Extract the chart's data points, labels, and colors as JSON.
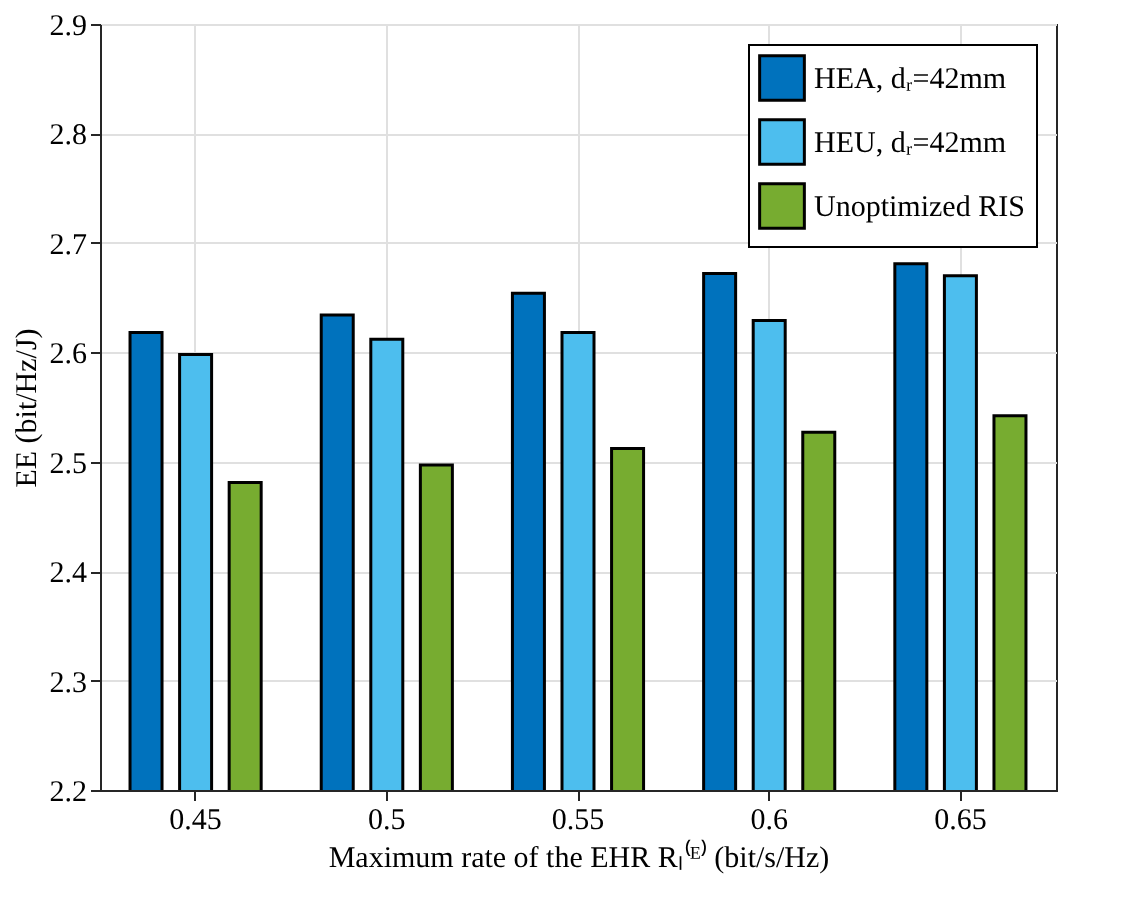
{
  "chart_data": {
    "type": "bar",
    "xlabel": "Maximum rate of the EHR Rₗ⁽ᴱ⁾ (bit/s/Hz)",
    "ylabel": "EE (bit/Hz/J)",
    "categories": [
      "0.45",
      "0.5",
      "0.55",
      "0.6",
      "0.65"
    ],
    "series": [
      {
        "name": "HEA, dᵣ=42mm",
        "color": "#0072bd",
        "values": [
          2.618,
          2.634,
          2.654,
          2.672,
          2.681
        ]
      },
      {
        "name": "HEU, dᵣ=42mm",
        "color": "#4dbeee",
        "values": [
          2.598,
          2.612,
          2.618,
          2.629,
          2.67
        ]
      },
      {
        "name": "Unoptimized RIS",
        "color": "#77ac30",
        "values": [
          2.481,
          2.497,
          2.512,
          2.527,
          2.542
        ]
      }
    ],
    "ylim": [
      2.2,
      2.9
    ],
    "yticks": [
      2.2,
      2.3,
      2.4,
      2.5,
      2.6,
      2.7,
      2.8,
      2.9
    ],
    "grid": true,
    "legend": "top right"
  }
}
